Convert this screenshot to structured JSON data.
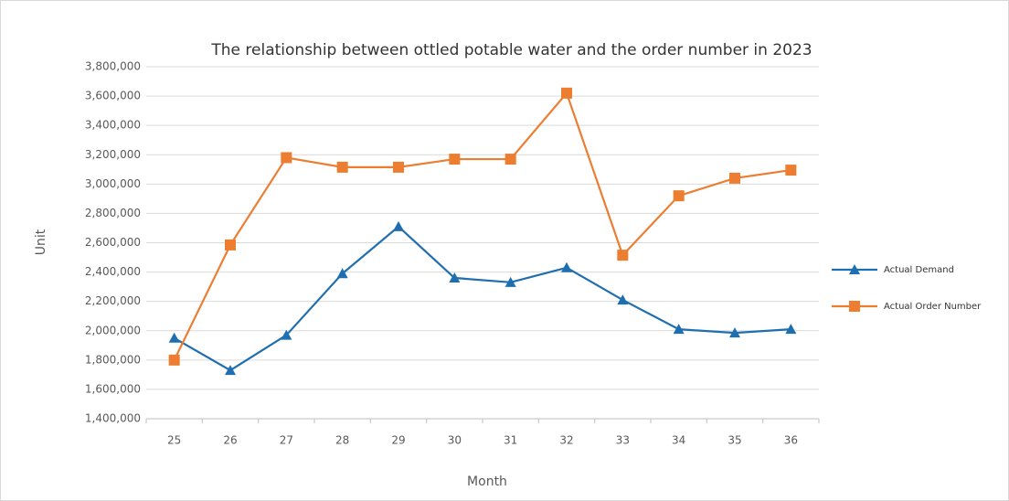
{
  "chart_data": {
    "type": "line",
    "title": "The relationship between ottled potable water and the order number in 2023",
    "x_label": "Month",
    "y_label": "Unit",
    "categories": [
      "25",
      "26",
      "27",
      "28",
      "29",
      "30",
      "31",
      "32",
      "33",
      "34",
      "35",
      "36"
    ],
    "series": [
      {
        "name": "Actual Demand",
        "color": "#1f6fb0",
        "marker": "triangle",
        "values": [
          1950000,
          1730000,
          1970000,
          2390000,
          2710000,
          2360000,
          2330000,
          2430000,
          2210000,
          2010000,
          1985000,
          2010000
        ]
      },
      {
        "name": "Actual Order Number",
        "color": "#ed7d31",
        "marker": "square",
        "values": [
          1800000,
          2585000,
          3180000,
          3115000,
          3115000,
          3170000,
          3170000,
          3620000,
          2515000,
          2920000,
          3040000,
          3095000
        ]
      }
    ],
    "ylim": [
      1400000,
      3800000
    ],
    "yticks": [
      {
        "value": 1400000,
        "label": "1,400,000"
      },
      {
        "value": 1600000,
        "label": "1,600,000"
      },
      {
        "value": 1800000,
        "label": "1,800,000"
      },
      {
        "value": 2000000,
        "label": "2,000,000"
      },
      {
        "value": 2200000,
        "label": "2,200,000"
      },
      {
        "value": 2400000,
        "label": "2,400,000"
      },
      {
        "value": 2600000,
        "label": "2,600,000"
      },
      {
        "value": 2800000,
        "label": "2,800,000"
      },
      {
        "value": 3000000,
        "label": "3,000,000"
      },
      {
        "value": 3200000,
        "label": "3,200,000"
      },
      {
        "value": 3400000,
        "label": "3,400,000"
      },
      {
        "value": 3600000,
        "label": "3,600,000"
      },
      {
        "value": 3800000,
        "label": "3,800,000"
      }
    ],
    "grid": true,
    "legend": "right"
  }
}
